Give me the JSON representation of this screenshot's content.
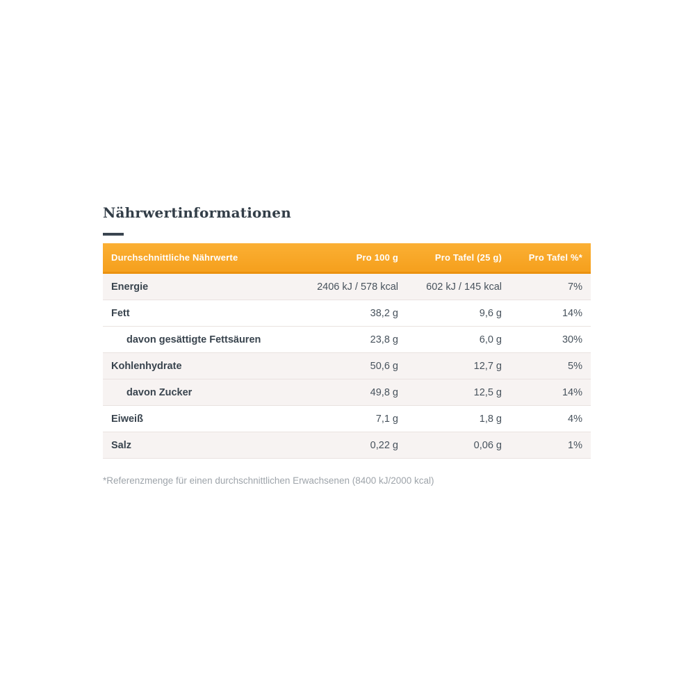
{
  "page": {
    "title": "Nährwertinformationen"
  },
  "table": {
    "headers": {
      "nutrients": "Durchschnittliche Nährwerte",
      "per_100g": "Pro 100 g",
      "per_tafel": "Pro Tafel (25 g)",
      "per_tafel_percent": "Pro Tafel %*"
    },
    "rows": [
      {
        "label": "Energie",
        "per_100g": "2406 kJ / 578 kcal",
        "per_tafel": "602 kJ / 145 kcal",
        "percent": "7%"
      },
      {
        "label": "Fett",
        "per_100g": "38,2 g",
        "per_tafel": "9,6 g",
        "percent": "14%"
      },
      {
        "label": "davon gesättigte Fettsäuren",
        "per_100g": "23,8 g",
        "per_tafel": "6,0 g",
        "percent": "30%"
      },
      {
        "label": "Kohlenhydrate",
        "per_100g": "50,6 g",
        "per_tafel": "12,7 g",
        "percent": "5%"
      },
      {
        "label": "davon Zucker",
        "per_100g": "49,8 g",
        "per_tafel": "12,5 g",
        "percent": "14%"
      },
      {
        "label": "Eiweiß",
        "per_100g": "7,1 g",
        "per_tafel": "1,8 g",
        "percent": "4%"
      },
      {
        "label": "Salz",
        "per_100g": "0,22 g",
        "per_tafel": "0,06 g",
        "percent": "1%"
      }
    ]
  },
  "footnote": "*Referenzmenge für einen durchschnittlichen Erwachsenen (8400 kJ/2000 kcal)",
  "colors": {
    "accent_orange": "#F7A823",
    "header_border_orange": "#EB9210",
    "row_shade": "#F7F3F2",
    "row_separator": "#E9E2E0",
    "text_dark": "#39444E",
    "text_value": "#47525C",
    "footnote_gray": "#9EA4AA"
  }
}
